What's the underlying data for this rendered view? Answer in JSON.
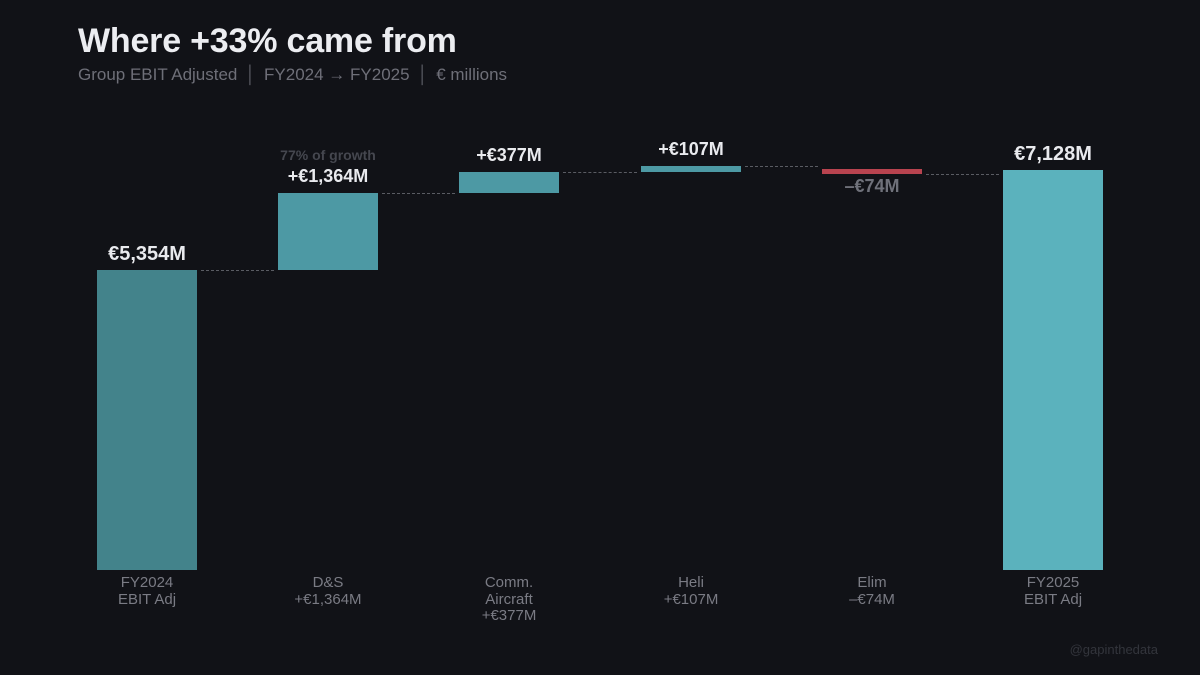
{
  "header": {
    "title": "Where +33% came from",
    "subtitle_parts": [
      "Group EBIT Adjusted",
      "FY2024 → FY2025",
      "€ millions"
    ],
    "separator": "│"
  },
  "watermark": "@gapinthedata",
  "colors": {
    "background": "#111217",
    "start_total": "#43838b",
    "increase": "#4d99a4",
    "decrease": "#b8434f",
    "end_total": "#5bb2bd",
    "connector": "#5a5c63"
  },
  "bars": [
    {
      "category": "FY2024\nEBIT Adj",
      "value_label": "€5,354M",
      "type": "total-start"
    },
    {
      "category": "D&S\n+€1,364M",
      "value_label": "+€1,364M",
      "type": "increase",
      "note": "77% of growth"
    },
    {
      "category": "Comm.\nAircraft\n+€377M",
      "value_label": "+€377M",
      "type": "increase"
    },
    {
      "category": "Heli\n+€107M",
      "value_label": "+€107M",
      "type": "increase"
    },
    {
      "category": "Elim\n–€74M",
      "value_label": "–€74M",
      "type": "decrease"
    },
    {
      "category": "FY2025\nEBIT Adj",
      "value_label": "€7,128M",
      "type": "total-end"
    }
  ],
  "chart_data": {
    "type": "bar",
    "subtype": "waterfall",
    "title": "Where +33% came from",
    "subtitle": "Group EBIT Adjusted │ FY2024 → FY2025 │ € millions",
    "categories": [
      "FY2024 EBIT Adj",
      "D&S",
      "Comm. Aircraft",
      "Heli",
      "Elim",
      "FY2025 EBIT Adj"
    ],
    "values": [
      5354,
      1364,
      377,
      107,
      -74,
      7128
    ],
    "base": [
      0,
      5354,
      6718,
      7095,
      7128,
      0
    ],
    "measure": [
      "absolute",
      "relative",
      "relative",
      "relative",
      "relative",
      "total"
    ],
    "annotations": [
      {
        "category": "D&S",
        "text": "77% of growth"
      }
    ],
    "xlabel": "",
    "ylabel": "€ millions",
    "ylim": [
      0,
      7128
    ],
    "grid": false,
    "legend": "none",
    "unit": "€ millions"
  }
}
